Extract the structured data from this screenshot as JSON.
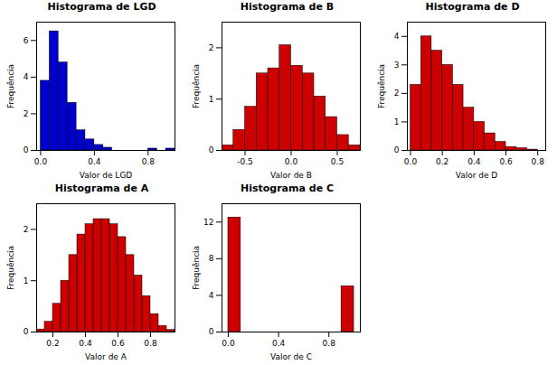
{
  "chart_data": [
    {
      "type": "histogram",
      "title": "Histograma de LGD",
      "xlabel": "Valor de LGD",
      "ylabel": "Frequência",
      "color": "#0000CC",
      "bins": [
        0.0,
        0.067,
        0.133,
        0.2,
        0.267,
        0.333,
        0.4,
        0.467,
        0.533,
        0.6,
        0.667,
        0.733,
        0.8,
        0.867,
        0.933,
        1.0
      ],
      "values": [
        3.8,
        6.5,
        4.8,
        2.6,
        1.1,
        0.6,
        0.3,
        0.15,
        0.0,
        0.0,
        0.0,
        0.0,
        0.1,
        0.0,
        0.1
      ],
      "xlim": [
        -0.03,
        1.0
      ],
      "xticks": [
        {
          "value": 0.0,
          "label": "0.0"
        },
        0.4,
        0.8
      ],
      "ylim": [
        0,
        7
      ],
      "yticks": [
        0,
        2,
        4,
        6
      ]
    },
    {
      "type": "histogram",
      "title": "Histograma de B",
      "xlabel": "Valor de B",
      "ylabel": "Frequência",
      "color": "#CC0000",
      "bins": [
        -0.75,
        -0.625,
        -0.5,
        -0.375,
        -0.25,
        -0.125,
        0.0,
        0.125,
        0.25,
        0.375,
        0.5,
        0.625,
        0.75
      ],
      "values": [
        0.1,
        0.4,
        0.85,
        1.5,
        1.6,
        2.05,
        1.65,
        1.5,
        1.05,
        0.65,
        0.3,
        0.1
      ],
      "xlim": [
        -0.75,
        0.75
      ],
      "xticks": [
        -0.5,
        {
          "value": 0.0,
          "label": "0.0"
        },
        0.5
      ],
      "ylim": [
        0,
        2.5
      ],
      "yticks": [
        0,
        1,
        2
      ]
    },
    {
      "type": "histogram",
      "title": "Histograma de D",
      "xlabel": "Valor de D",
      "ylabel": "Frequência",
      "color": "#CC0000",
      "bins": [
        0.0,
        0.067,
        0.133,
        0.2,
        0.267,
        0.333,
        0.4,
        0.467,
        0.533,
        0.6,
        0.667,
        0.733,
        0.8
      ],
      "values": [
        2.3,
        4.0,
        3.5,
        3.0,
        2.3,
        1.5,
        1.0,
        0.6,
        0.3,
        0.12,
        0.08,
        0.03
      ],
      "xlim": [
        -0.02,
        0.85
      ],
      "xticks": [
        {
          "value": 0.0,
          "label": "0.0"
        },
        0.2,
        0.4,
        0.6,
        0.8
      ],
      "ylim": [
        0,
        4.5
      ],
      "yticks": [
        0,
        1,
        2,
        3,
        4
      ]
    },
    {
      "type": "histogram",
      "title": "Histograma de A",
      "xlabel": "Valor de A",
      "ylabel": "Frequência",
      "color": "#CC0000",
      "bins": [
        0.1,
        0.15,
        0.2,
        0.25,
        0.3,
        0.35,
        0.4,
        0.45,
        0.5,
        0.55,
        0.6,
        0.65,
        0.7,
        0.75,
        0.8,
        0.85,
        0.9,
        0.95
      ],
      "values": [
        0.05,
        0.2,
        0.55,
        1.0,
        1.5,
        1.9,
        2.1,
        2.2,
        2.2,
        2.1,
        1.85,
        1.5,
        1.1,
        0.7,
        0.35,
        0.12,
        0.04
      ],
      "xlim": [
        0.1,
        0.95
      ],
      "xticks": [
        0.2,
        0.4,
        0.6,
        0.8
      ],
      "ylim": [
        0,
        2.5
      ],
      "yticks": [
        0,
        1,
        2
      ]
    },
    {
      "type": "histogram",
      "title": "Histograma de C",
      "xlabel": "Valor de C",
      "ylabel": "Frequência",
      "color": "#CC0000",
      "bins": [
        0.0,
        0.1,
        0.2,
        0.3,
        0.4,
        0.5,
        0.6,
        0.7,
        0.8,
        0.9,
        1.0
      ],
      "values": [
        12.5,
        0.0,
        0.0,
        0.0,
        0.0,
        0.0,
        0.0,
        0.0,
        0.0,
        5.0
      ],
      "xlim": [
        -0.05,
        1.05
      ],
      "xticks": [
        {
          "value": 0.0,
          "label": "0.0"
        },
        0.4,
        0.8
      ],
      "ylim": [
        0,
        14
      ],
      "yticks": [
        0,
        4,
        8,
        12
      ]
    }
  ]
}
